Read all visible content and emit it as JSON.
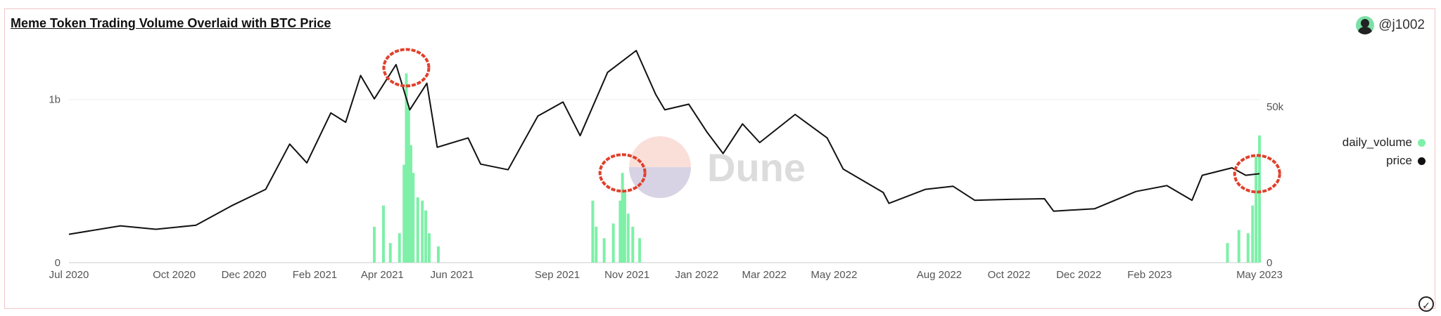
{
  "card": {
    "title": "Meme Token Trading Volume Overlaid with BTC Price",
    "author": "@j1002"
  },
  "watermark": "Dune",
  "colors": {
    "volume": "#7ef0a8",
    "price": "#111111",
    "highlight": "#e0402c",
    "grid": "#eeeeee",
    "axis": "#555555"
  },
  "chart_data": {
    "type": "bar",
    "title": "Meme Token Trading Volume Overlaid with BTC Price",
    "x_ticks": [
      "Jul 2020",
      "Oct 2020",
      "Dec 2020",
      "Feb 2021",
      "Apr 2021",
      "Jun 2021",
      "Sep 2021",
      "Nov 2021",
      "Jan 2022",
      "Mar 2022",
      "May 2022",
      "Aug 2022",
      "Oct 2022",
      "Dec 2022",
      "Feb 2023",
      "May 2023"
    ],
    "y_left": {
      "ticks": [
        "0",
        "1b"
      ],
      "range": [
        0,
        1.3
      ]
    },
    "y_right": {
      "ticks": [
        "0",
        "50k"
      ],
      "range": [
        0,
        68000
      ]
    },
    "legend": {
      "position": "right",
      "entries": [
        "daily_volume",
        "price"
      ]
    },
    "series": [
      {
        "name": "price",
        "type": "line",
        "axis": "right",
        "points": [
          [
            "2020-07-01",
            9100
          ],
          [
            "2020-08-15",
            11800
          ],
          [
            "2020-09-15",
            10700
          ],
          [
            "2020-10-20",
            12000
          ],
          [
            "2020-11-20",
            18200
          ],
          [
            "2020-12-20",
            23500
          ],
          [
            "2021-01-10",
            38000
          ],
          [
            "2021-01-25",
            32000
          ],
          [
            "2021-02-15",
            48000
          ],
          [
            "2021-02-28",
            45000
          ],
          [
            "2021-03-13",
            60000
          ],
          [
            "2021-03-25",
            52500
          ],
          [
            "2021-04-13",
            63500
          ],
          [
            "2021-04-25",
            49000
          ],
          [
            "2021-05-10",
            57500
          ],
          [
            "2021-05-19",
            37000
          ],
          [
            "2021-06-15",
            40000
          ],
          [
            "2021-06-26",
            31600
          ],
          [
            "2021-07-20",
            29800
          ],
          [
            "2021-08-15",
            47000
          ],
          [
            "2021-09-06",
            51500
          ],
          [
            "2021-09-21",
            40700
          ],
          [
            "2021-10-15",
            61000
          ],
          [
            "2021-11-09",
            68000
          ],
          [
            "2021-11-26",
            54000
          ],
          [
            "2021-12-04",
            49000
          ],
          [
            "2021-12-25",
            50800
          ],
          [
            "2022-01-10",
            41800
          ],
          [
            "2022-01-24",
            35000
          ],
          [
            "2022-02-10",
            44500
          ],
          [
            "2022-02-25",
            38500
          ],
          [
            "2022-03-28",
            47500
          ],
          [
            "2022-04-25",
            40000
          ],
          [
            "2022-05-09",
            30000
          ],
          [
            "2022-06-13",
            22500
          ],
          [
            "2022-06-18",
            19000
          ],
          [
            "2022-07-20",
            23500
          ],
          [
            "2022-08-13",
            24500
          ],
          [
            "2022-09-01",
            20000
          ],
          [
            "2022-10-05",
            20300
          ],
          [
            "2022-11-01",
            20500
          ],
          [
            "2022-11-09",
            16500
          ],
          [
            "2022-12-15",
            17300
          ],
          [
            "2023-01-20",
            22800
          ],
          [
            "2023-02-16",
            24700
          ],
          [
            "2023-03-10",
            20000
          ],
          [
            "2023-03-19",
            28000
          ],
          [
            "2023-04-14",
            30400
          ],
          [
            "2023-04-26",
            28000
          ],
          [
            "2023-05-08",
            28500
          ]
        ]
      },
      {
        "name": "daily_volume",
        "type": "bar",
        "axis": "left",
        "points": [
          [
            "2021-03-25",
            0.22
          ],
          [
            "2021-04-02",
            0.35
          ],
          [
            "2021-04-08",
            0.12
          ],
          [
            "2021-04-16",
            0.18
          ],
          [
            "2021-04-20",
            0.6
          ],
          [
            "2021-04-22",
            1.16
          ],
          [
            "2021-04-24",
            0.95
          ],
          [
            "2021-04-26",
            0.72
          ],
          [
            "2021-04-28",
            0.55
          ],
          [
            "2021-05-02",
            0.4
          ],
          [
            "2021-05-06",
            0.38
          ],
          [
            "2021-05-09",
            0.32
          ],
          [
            "2021-05-12",
            0.18
          ],
          [
            "2021-05-20",
            0.1
          ],
          [
            "2021-10-02",
            0.38
          ],
          [
            "2021-10-05",
            0.22
          ],
          [
            "2021-10-12",
            0.15
          ],
          [
            "2021-10-20",
            0.24
          ],
          [
            "2021-10-26",
            0.38
          ],
          [
            "2021-10-28",
            0.55
          ],
          [
            "2021-10-30",
            0.43
          ],
          [
            "2021-11-02",
            0.3
          ],
          [
            "2021-11-06",
            0.22
          ],
          [
            "2021-11-12",
            0.15
          ],
          [
            "2023-04-10",
            0.12
          ],
          [
            "2023-04-20",
            0.2
          ],
          [
            "2023-04-28",
            0.18
          ],
          [
            "2023-05-02",
            0.35
          ],
          [
            "2023-05-05",
            0.65
          ],
          [
            "2023-05-08",
            0.78
          ]
        ]
      }
    ],
    "annotations": [
      {
        "shape": "circle",
        "color": "#e0402c",
        "date": "2021-04-22",
        "series": "price",
        "value": 62500
      },
      {
        "shape": "circle",
        "color": "#e0402c",
        "date": "2021-10-28",
        "series": "daily_volume",
        "value": 0.55
      },
      {
        "shape": "circle",
        "color": "#e0402c",
        "date": "2023-05-06",
        "series": "price",
        "value": 28500
      }
    ]
  }
}
